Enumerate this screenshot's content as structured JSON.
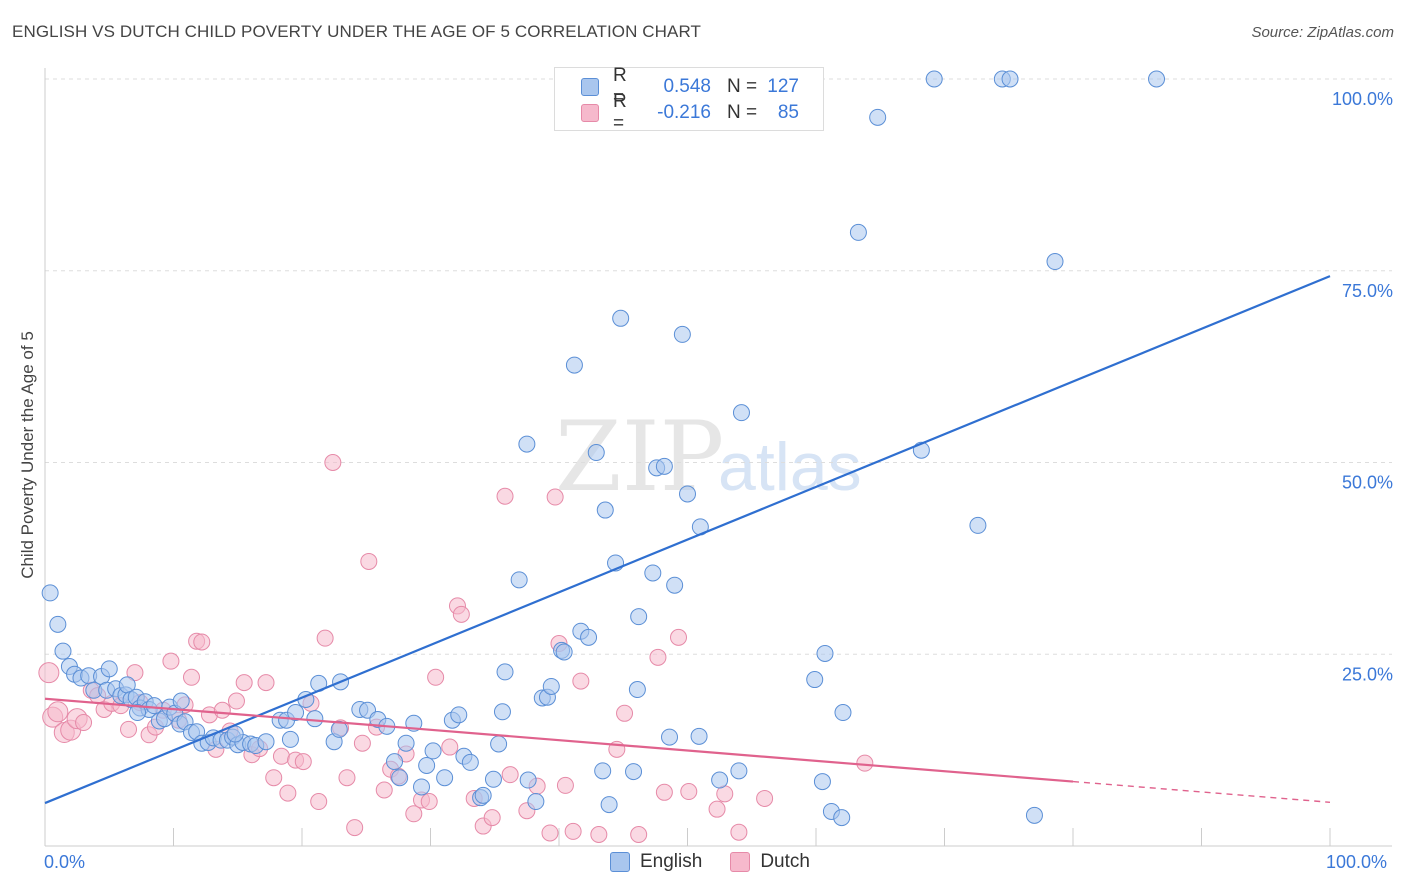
{
  "title": "ENGLISH VS DUTCH CHILD POVERTY UNDER THE AGE OF 5 CORRELATION CHART",
  "source": "Source: ZipAtlas.com",
  "watermark": {
    "zip": "ZIP",
    "atlas": "atlas"
  },
  "legend": {
    "english": {
      "r_label": "R =",
      "r_value": "0.548",
      "n_label": "N =",
      "n_value": "127"
    },
    "dutch": {
      "r_label": "R =",
      "r_value": "-0.216",
      "n_label": "N =",
      "n_value": "85"
    }
  },
  "colors": {
    "english_fill": "#a9c6ee",
    "english_stroke": "#5b8fd6",
    "english_line": "#2f6fd0",
    "dutch_fill": "#f6b9cc",
    "dutch_stroke": "#e68aa8",
    "dutch_line": "#e0628d",
    "tick_text": "#3b78d8",
    "grid": "#dddddd"
  },
  "chart_data": {
    "type": "scatter",
    "title": "ENGLISH VS DUTCH CHILD POVERTY UNDER THE AGE OF 5 CORRELATION CHART",
    "xlabel": "",
    "ylabel": "Child Poverty Under the Age of 5",
    "xlim": [
      0,
      100
    ],
    "ylim": [
      0,
      100
    ],
    "x_tick_labels": [
      "0.0%",
      "100.0%"
    ],
    "y_ticks": [
      25,
      50,
      75,
      100
    ],
    "y_tick_labels": [
      "25.0%",
      "50.0%",
      "75.0%",
      "100.0%"
    ],
    "grid": true,
    "legend_position": "top-center",
    "series": [
      {
        "name": "English",
        "r": 0.548,
        "n": 127,
        "trend": {
          "x0": 0,
          "y0": 5.6,
          "x1": 100,
          "y1": 74.3
        },
        "points": [
          [
            0.4,
            33.0
          ],
          [
            1.0,
            28.9
          ],
          [
            1.4,
            25.4
          ],
          [
            1.9,
            23.4
          ],
          [
            2.3,
            22.4
          ],
          [
            2.8,
            21.9
          ],
          [
            3.4,
            22.2
          ],
          [
            3.8,
            20.3
          ],
          [
            4.4,
            22.1
          ],
          [
            4.8,
            20.3
          ],
          [
            5.0,
            23.1
          ],
          [
            5.5,
            20.5
          ],
          [
            5.9,
            19.6
          ],
          [
            6.3,
            19.7
          ],
          [
            6.4,
            21.0
          ],
          [
            6.7,
            19.1
          ],
          [
            7.1,
            19.4
          ],
          [
            7.4,
            18.0
          ],
          [
            7.8,
            18.8
          ],
          [
            8.1,
            17.8
          ],
          [
            8.5,
            18.3
          ],
          [
            8.9,
            16.3
          ],
          [
            9.3,
            16.6
          ],
          [
            9.7,
            18.1
          ],
          [
            10.1,
            17.3
          ],
          [
            10.5,
            15.9
          ],
          [
            10.9,
            16.2
          ],
          [
            11.4,
            14.8
          ],
          [
            11.8,
            14.9
          ],
          [
            12.2,
            13.4
          ],
          [
            12.7,
            13.5
          ],
          [
            13.1,
            14.1
          ],
          [
            13.7,
            13.8
          ],
          [
            14.2,
            13.8
          ],
          [
            14.6,
            14.2
          ],
          [
            15.0,
            13.2
          ],
          [
            15.4,
            13.5
          ],
          [
            16.0,
            13.3
          ],
          [
            16.4,
            13.1
          ],
          [
            17.2,
            13.6
          ],
          [
            18.3,
            16.4
          ],
          [
            18.8,
            16.4
          ],
          [
            19.5,
            17.4
          ],
          [
            20.3,
            19.1
          ],
          [
            21.3,
            21.2
          ],
          [
            21.0,
            16.6
          ],
          [
            22.5,
            13.6
          ],
          [
            23.0,
            21.4
          ],
          [
            22.9,
            15.2
          ],
          [
            24.5,
            17.8
          ],
          [
            25.1,
            17.7
          ],
          [
            25.9,
            16.5
          ],
          [
            26.6,
            15.6
          ],
          [
            27.2,
            11.0
          ],
          [
            27.6,
            8.9
          ],
          [
            28.1,
            13.4
          ],
          [
            28.7,
            16.0
          ],
          [
            29.3,
            7.7
          ],
          [
            29.7,
            10.5
          ],
          [
            30.2,
            12.4
          ],
          [
            31.1,
            8.9
          ],
          [
            31.7,
            16.4
          ],
          [
            32.2,
            17.1
          ],
          [
            32.6,
            11.7
          ],
          [
            33.1,
            10.9
          ],
          [
            33.9,
            6.3
          ],
          [
            34.1,
            6.6
          ],
          [
            34.9,
            8.7
          ],
          [
            35.3,
            13.3
          ],
          [
            35.6,
            17.5
          ],
          [
            35.8,
            22.7
          ],
          [
            36.9,
            34.7
          ],
          [
            37.6,
            8.6
          ],
          [
            37.5,
            52.4
          ],
          [
            38.2,
            5.8
          ],
          [
            38.7,
            19.3
          ],
          [
            39.1,
            19.4
          ],
          [
            39.4,
            20.8
          ],
          [
            40.2,
            25.5
          ],
          [
            40.4,
            25.3
          ],
          [
            41.2,
            62.7
          ],
          [
            41.7,
            28.0
          ],
          [
            42.3,
            27.2
          ],
          [
            42.9,
            51.3
          ],
          [
            43.6,
            43.8
          ],
          [
            43.4,
            9.8
          ],
          [
            43.9,
            5.4
          ],
          [
            44.4,
            36.9
          ],
          [
            44.8,
            68.8
          ],
          [
            45.8,
            9.7
          ],
          [
            46.1,
            20.4
          ],
          [
            46.2,
            29.9
          ],
          [
            47.3,
            35.6
          ],
          [
            47.6,
            49.3
          ],
          [
            48.2,
            49.5
          ],
          [
            48.6,
            14.2
          ],
          [
            49.0,
            34.0
          ],
          [
            49.6,
            66.7
          ],
          [
            50.0,
            45.9
          ],
          [
            50.9,
            14.3
          ],
          [
            51.0,
            41.6
          ],
          [
            52.3,
            100.0
          ],
          [
            52.5,
            8.6
          ],
          [
            54.0,
            9.8
          ],
          [
            54.2,
            56.5
          ],
          [
            56.2,
            100.0
          ],
          [
            58.2,
            100.0
          ],
          [
            59.9,
            21.7
          ],
          [
            60.5,
            8.4
          ],
          [
            60.7,
            25.1
          ],
          [
            61.2,
            4.5
          ],
          [
            62.0,
            3.7
          ],
          [
            62.1,
            17.4
          ],
          [
            63.3,
            80.0
          ],
          [
            64.8,
            95.0
          ],
          [
            69.2,
            100.0
          ],
          [
            68.2,
            51.6
          ],
          [
            72.6,
            41.8
          ],
          [
            74.5,
            100.0
          ],
          [
            75.1,
            100.0
          ],
          [
            77.0,
            4.0
          ],
          [
            78.6,
            76.2
          ],
          [
            86.5,
            100.0
          ],
          [
            7.2,
            17.4
          ],
          [
            10.6,
            18.9
          ],
          [
            14.8,
            14.6
          ],
          [
            19.1,
            13.9
          ]
        ]
      },
      {
        "name": "Dutch",
        "r": -0.216,
        "n": 85,
        "trend": {
          "x0": 0,
          "y0": 19.2,
          "x1": 80,
          "y1": 8.4,
          "x_dash_end": 100,
          "y_dash_end": 5.7
        },
        "points": [
          [
            0.3,
            22.6
          ],
          [
            0.6,
            16.8
          ],
          [
            1.0,
            17.5
          ],
          [
            1.5,
            14.8
          ],
          [
            2.0,
            15.1
          ],
          [
            2.5,
            16.6
          ],
          [
            3.0,
            16.1
          ],
          [
            3.6,
            20.3
          ],
          [
            4.1,
            19.6
          ],
          [
            4.6,
            17.8
          ],
          [
            5.2,
            18.6
          ],
          [
            5.9,
            18.3
          ],
          [
            6.5,
            15.2
          ],
          [
            7.0,
            22.6
          ],
          [
            7.4,
            18.7
          ],
          [
            8.1,
            14.5
          ],
          [
            8.6,
            15.5
          ],
          [
            9.2,
            17.7
          ],
          [
            9.8,
            24.1
          ],
          [
            10.4,
            16.4
          ],
          [
            10.9,
            18.4
          ],
          [
            11.4,
            22.0
          ],
          [
            11.8,
            26.7
          ],
          [
            12.2,
            26.6
          ],
          [
            12.8,
            17.1
          ],
          [
            13.3,
            12.6
          ],
          [
            13.8,
            17.7
          ],
          [
            14.4,
            15.0
          ],
          [
            14.9,
            18.9
          ],
          [
            15.5,
            21.3
          ],
          [
            16.1,
            11.9
          ],
          [
            16.7,
            12.7
          ],
          [
            17.2,
            21.3
          ],
          [
            17.8,
            8.9
          ],
          [
            18.4,
            11.7
          ],
          [
            18.9,
            6.9
          ],
          [
            19.5,
            11.2
          ],
          [
            20.1,
            11.0
          ],
          [
            20.7,
            18.6
          ],
          [
            21.3,
            5.8
          ],
          [
            21.8,
            27.1
          ],
          [
            22.4,
            50.0
          ],
          [
            23.0,
            15.4
          ],
          [
            23.5,
            8.9
          ],
          [
            24.1,
            2.4
          ],
          [
            24.7,
            13.4
          ],
          [
            25.2,
            37.1
          ],
          [
            25.8,
            15.5
          ],
          [
            26.4,
            7.3
          ],
          [
            26.9,
            10.0
          ],
          [
            27.5,
            9.1
          ],
          [
            28.1,
            12.0
          ],
          [
            28.7,
            4.2
          ],
          [
            29.3,
            6.0
          ],
          [
            29.9,
            5.8
          ],
          [
            30.4,
            22.0
          ],
          [
            31.5,
            12.9
          ],
          [
            32.1,
            31.3
          ],
          [
            32.4,
            30.2
          ],
          [
            33.4,
            6.2
          ],
          [
            34.1,
            2.6
          ],
          [
            34.8,
            3.7
          ],
          [
            35.8,
            45.6
          ],
          [
            36.2,
            9.3
          ],
          [
            37.5,
            4.6
          ],
          [
            38.3,
            7.8
          ],
          [
            39.3,
            1.7
          ],
          [
            39.7,
            45.5
          ],
          [
            40.0,
            26.4
          ],
          [
            40.5,
            7.9
          ],
          [
            41.1,
            1.9
          ],
          [
            41.7,
            21.5
          ],
          [
            43.1,
            1.5
          ],
          [
            44.5,
            12.6
          ],
          [
            45.1,
            17.3
          ],
          [
            46.2,
            1.5
          ],
          [
            47.7,
            24.6
          ],
          [
            48.2,
            7.0
          ],
          [
            49.3,
            27.2
          ],
          [
            50.1,
            7.1
          ],
          [
            52.3,
            4.8
          ],
          [
            52.9,
            6.8
          ],
          [
            54.0,
            1.8
          ],
          [
            63.8,
            10.8
          ],
          [
            56.0,
            6.2
          ]
        ]
      }
    ]
  },
  "axes": {
    "x_left_label": "0.0%",
    "x_right_label": "100.0%",
    "ylabel": "Child Poverty Under the Age of 5"
  },
  "bottom_legend": {
    "english": "English",
    "dutch": "Dutch"
  }
}
